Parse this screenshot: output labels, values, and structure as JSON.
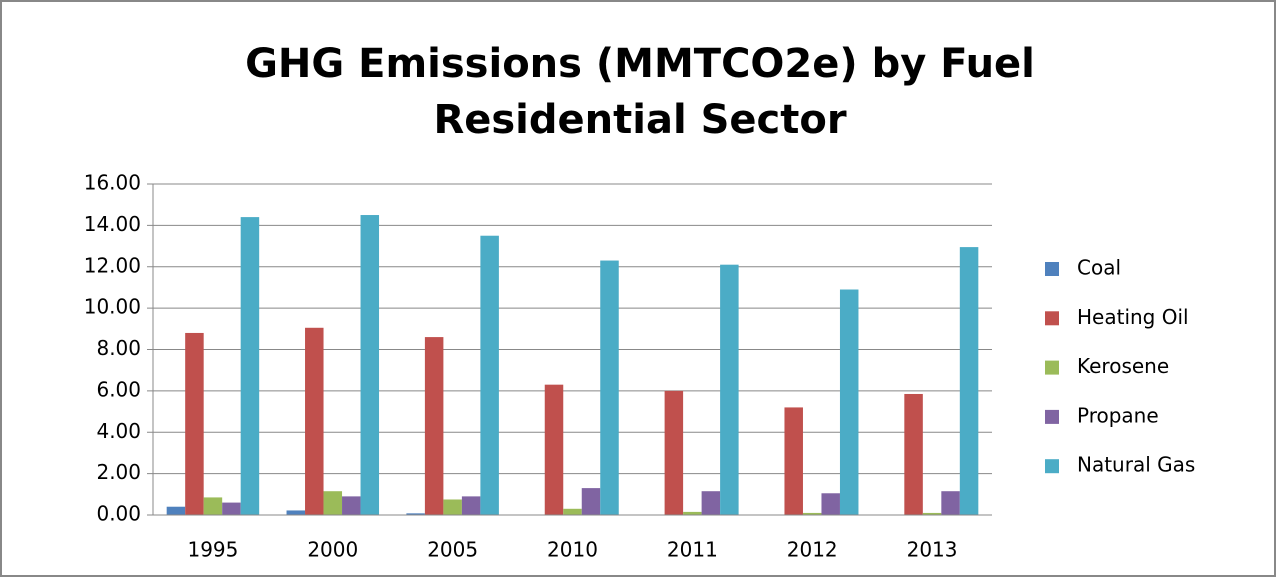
{
  "chart_data": {
    "type": "bar",
    "title": [
      "GHG Emissions (MMTCO2e) by Fuel",
      "Residential Sector"
    ],
    "categories": [
      "1995",
      "2000",
      "2005",
      "2010",
      "2011",
      "2012",
      "2013"
    ],
    "series": [
      {
        "name": "Coal",
        "color": "#4f81bd",
        "values": [
          0.4,
          0.22,
          0.08,
          0.02,
          0.01,
          0.01,
          0.01
        ]
      },
      {
        "name": "Heating Oil",
        "color": "#c0504d",
        "values": [
          8.8,
          9.05,
          8.6,
          6.3,
          6.0,
          5.2,
          5.85
        ]
      },
      {
        "name": "Kerosene",
        "color": "#9bbb59",
        "values": [
          0.85,
          1.15,
          0.75,
          0.3,
          0.15,
          0.1,
          0.1
        ]
      },
      {
        "name": "Propane",
        "color": "#8064a2",
        "values": [
          0.6,
          0.9,
          0.9,
          1.3,
          1.15,
          1.05,
          1.15
        ]
      },
      {
        "name": "Natural Gas",
        "color": "#4bacc6",
        "values": [
          14.4,
          14.5,
          13.5,
          12.3,
          12.1,
          10.9,
          12.95
        ]
      }
    ],
    "ylim": [
      0,
      16
    ],
    "yticks": [
      {
        "value": 0,
        "label": "0.00"
      },
      {
        "value": 2,
        "label": "2.00"
      },
      {
        "value": 4,
        "label": "4.00"
      },
      {
        "value": 6,
        "label": "6.00"
      },
      {
        "value": 8,
        "label": "8.00"
      },
      {
        "value": 10,
        "label": "10.00"
      },
      {
        "value": 12,
        "label": "12.00"
      },
      {
        "value": 14,
        "label": "14.00"
      },
      {
        "value": 16,
        "label": "16.00"
      }
    ],
    "grid": true,
    "legend": "right"
  }
}
